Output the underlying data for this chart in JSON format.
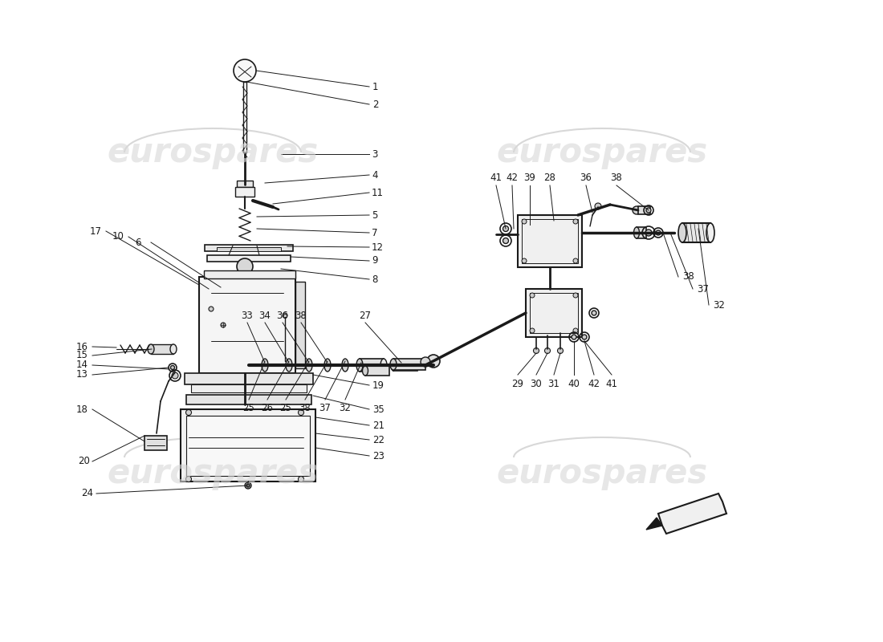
{
  "bg_color": "#ffffff",
  "watermark_color": "#d8d8d8",
  "watermark_text": "eurospares",
  "line_color": "#1a1a1a",
  "label_color": "#111111",
  "label_fontsize": 8.5,
  "figsize": [
    11.0,
    8.0
  ],
  "dpi": 100
}
